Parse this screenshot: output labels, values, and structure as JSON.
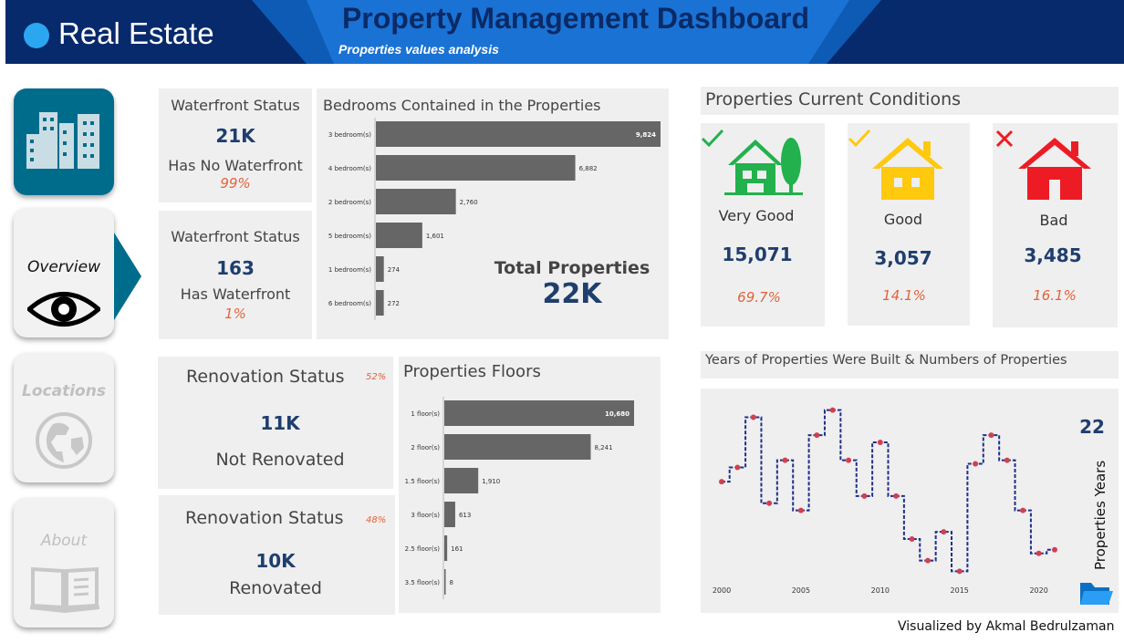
{
  "header": {
    "brand": "Real Estate",
    "title": "Property Management Dashboard",
    "subtitle": "Properties values analysis",
    "colors": {
      "dark": "#072a6c",
      "mid": "#0d5bb5",
      "dot": "#2aa7f0"
    }
  },
  "nav": {
    "overview": "Overview",
    "locations": "Locations",
    "about": "About"
  },
  "waterfront_no": {
    "title": "Waterfront Status",
    "value": "21K",
    "label": "Has No Waterfront",
    "pct": "99%"
  },
  "waterfront_yes": {
    "title": "Waterfront Status",
    "value": "163",
    "label": "Has Waterfront",
    "pct": "1%"
  },
  "renov_no": {
    "title": "Renovation Status",
    "pct": "52%",
    "value": "11K",
    "label": "Not Renovated"
  },
  "renov_yes": {
    "title": "Renovation Status",
    "pct": "48%",
    "value": "10K",
    "label": "Renovated"
  },
  "bedrooms": {
    "title": "Bedrooms Contained in the Properties",
    "total_label": "Total Properties",
    "total_value": "22K"
  },
  "floors": {
    "title": "Properties Floors"
  },
  "conditions": {
    "title": "Properties Current Conditions",
    "items": [
      {
        "label": "Very Good",
        "value": "15,071",
        "pct": "69.7%",
        "color": "#22b14c"
      },
      {
        "label": "Good",
        "value": "3,057",
        "pct": "14.1%",
        "color": "#ffc90e"
      },
      {
        "label": "Bad",
        "value": "3,485",
        "pct": "16.1%",
        "color": "#ed1c24"
      }
    ]
  },
  "years": {
    "title": "Years of Properties Were Built & Numbers of Properties",
    "count": "22",
    "count_label": "Properties Years"
  },
  "footer": {
    "credit": "Visualized by Akmal Bedrulzaman"
  },
  "chart_data": [
    {
      "type": "bar",
      "orientation": "horizontal",
      "title": "Bedrooms Contained in the Properties",
      "categories": [
        "3 bedroom(s)",
        "4 bedroom(s)",
        "2 bedroom(s)",
        "5 bedroom(s)",
        "1 bedroom(s)",
        "6 bedroom(s)"
      ],
      "values": [
        9824,
        6882,
        2760,
        1601,
        274,
        272
      ],
      "labels": [
        "9,824",
        "6,882",
        "2,760",
        "1,601",
        "274",
        "272"
      ]
    },
    {
      "type": "bar",
      "orientation": "horizontal",
      "title": "Properties Floors",
      "categories": [
        "1 floor(s)",
        "2 floor(s)",
        "1.5 floor(s)",
        "3 floor(s)",
        "2.5 floor(s)",
        "3.5 floor(s)"
      ],
      "values": [
        10680,
        8241,
        1910,
        613,
        161,
        8
      ],
      "labels": [
        "10,680",
        "8,241",
        "1,910",
        "613",
        "161",
        "8"
      ]
    },
    {
      "type": "line",
      "step": true,
      "title": "Years of Properties Were Built & Numbers of Properties",
      "x": [
        2000,
        2001,
        2002,
        2003,
        2004,
        2005,
        2006,
        2007,
        2008,
        2009,
        2010,
        2011,
        2012,
        2013,
        2014,
        2015,
        2016,
        2017,
        2018,
        2019,
        2020,
        2021
      ],
      "y": [
        700,
        740,
        880,
        640,
        760,
        620,
        830,
        900,
        760,
        660,
        810,
        660,
        540,
        480,
        560,
        450,
        750,
        830,
        760,
        620,
        500,
        510
      ],
      "xticks": [
        "2000",
        "2005",
        "2010",
        "2015",
        "2020"
      ],
      "ylim": [
        400,
        950
      ]
    }
  ]
}
